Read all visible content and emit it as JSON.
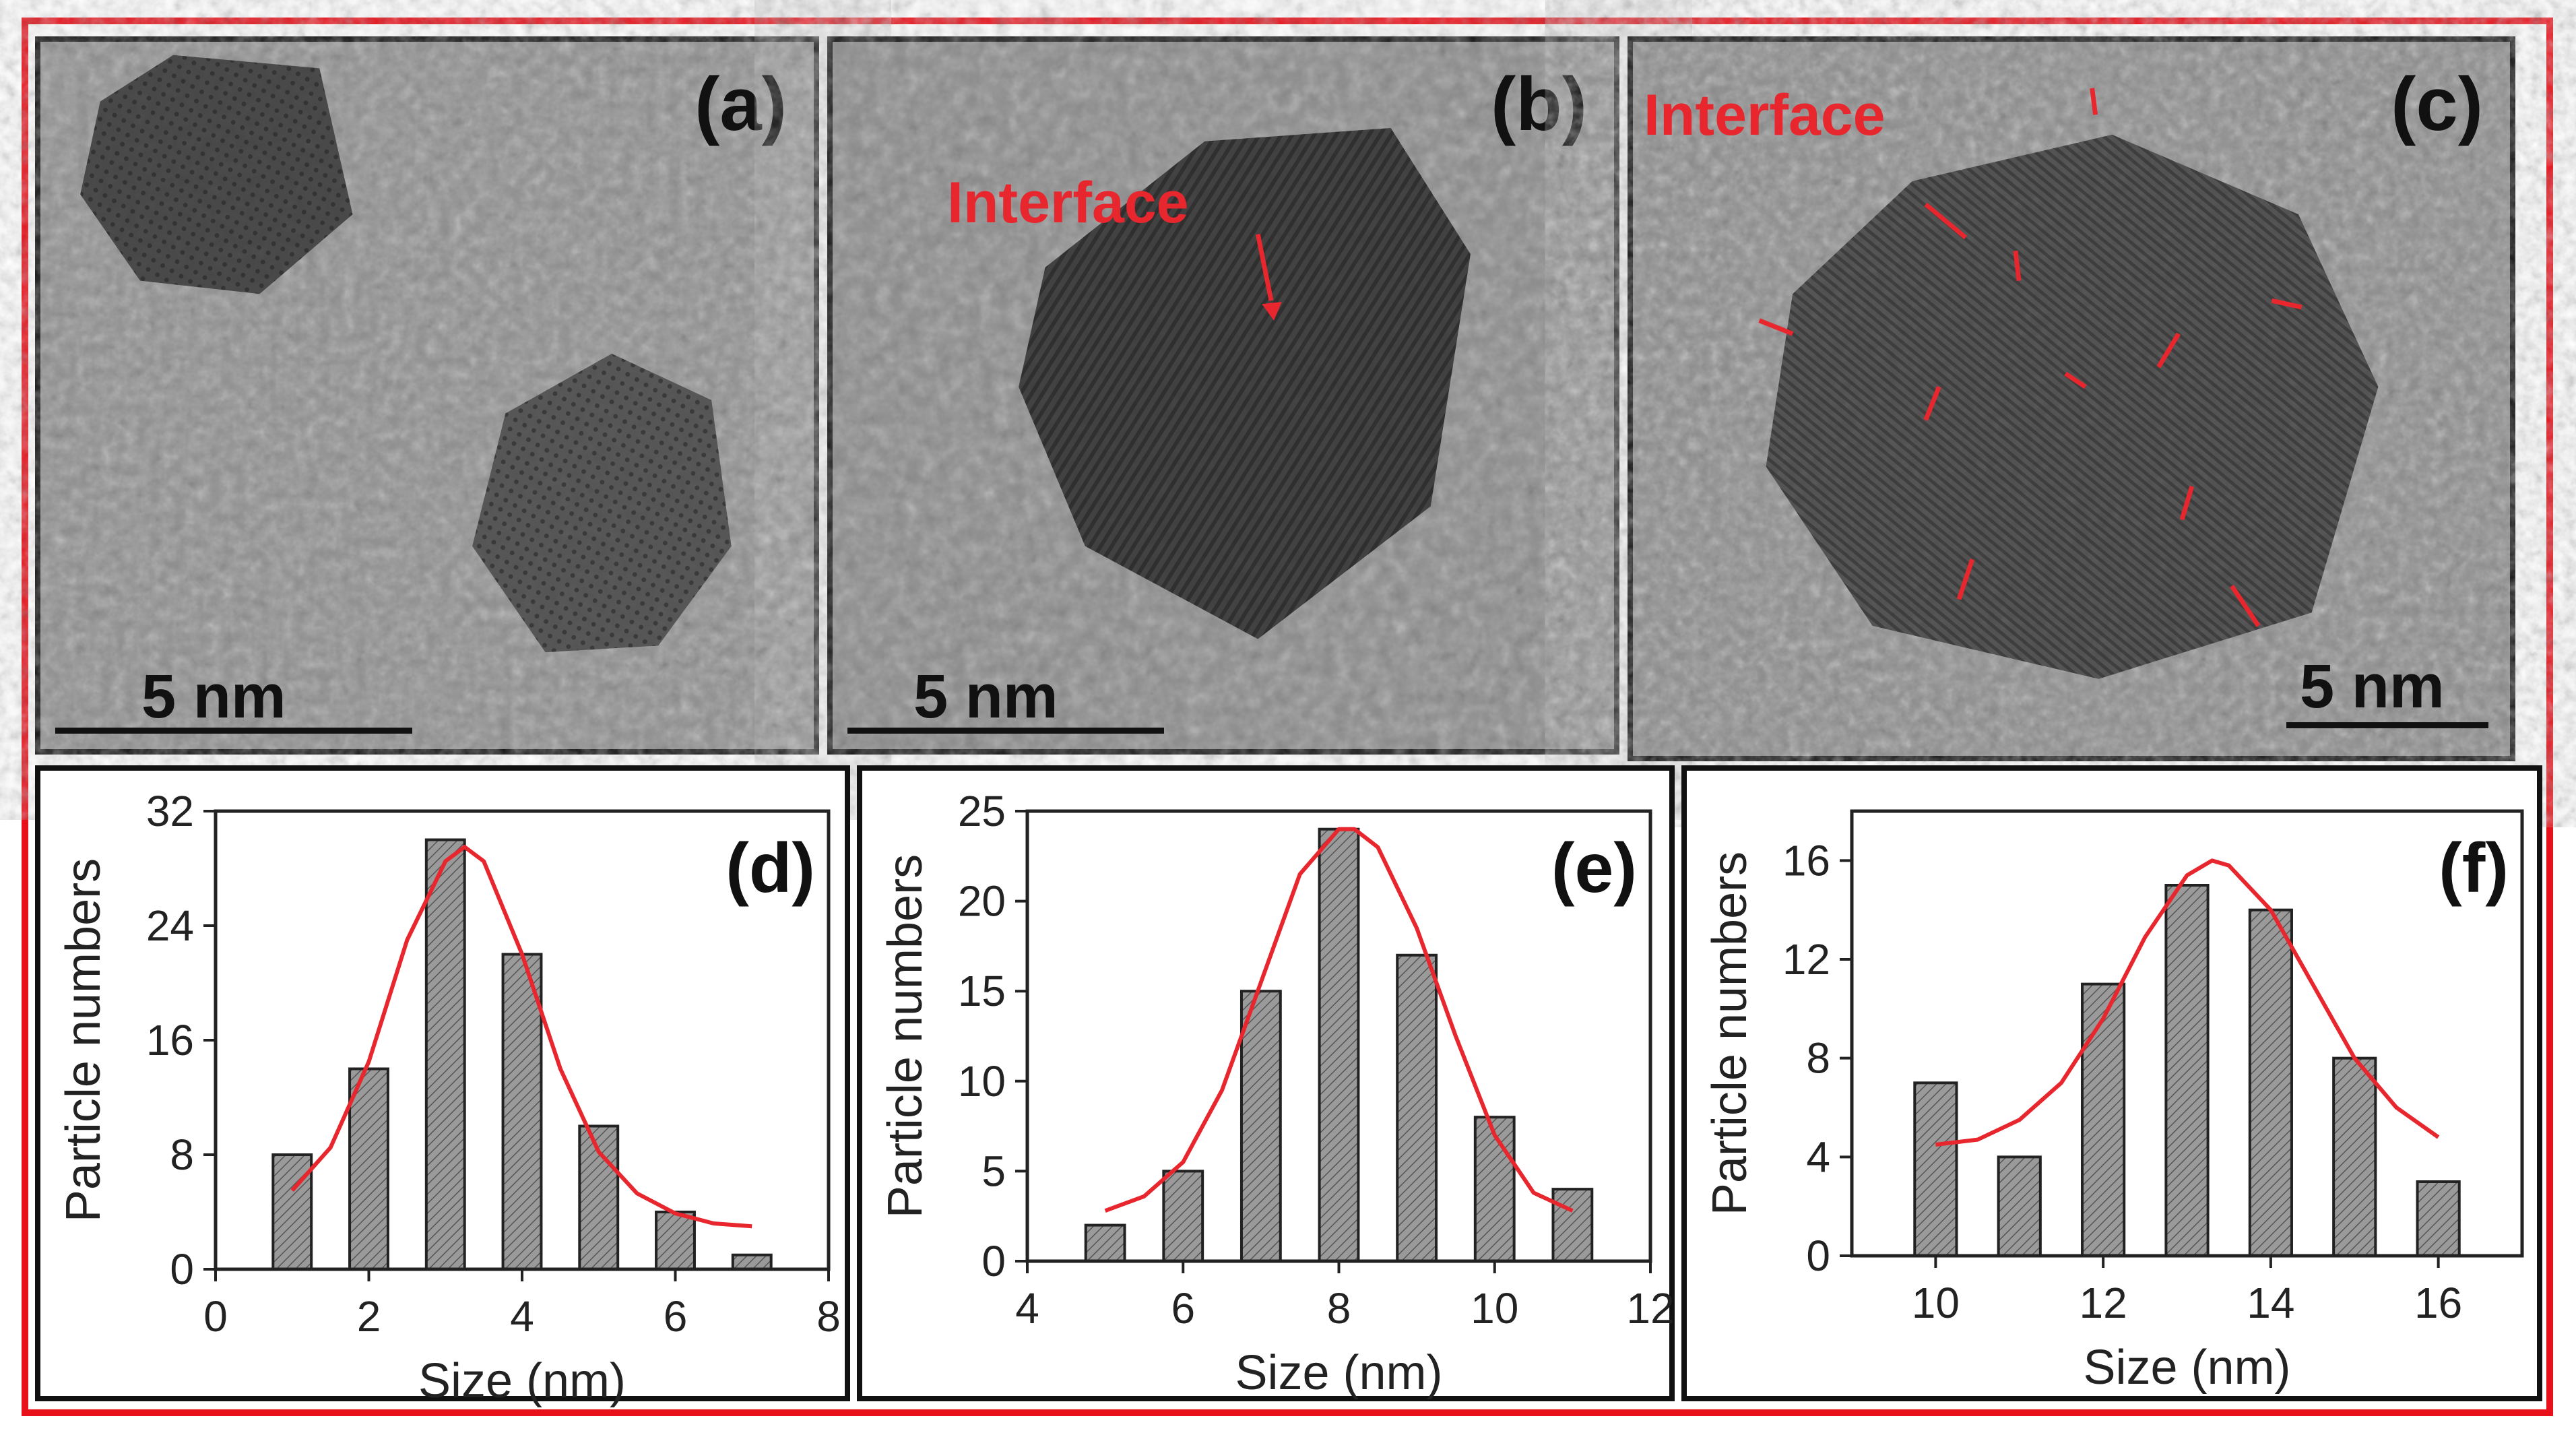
{
  "tem_panels": [
    {
      "label": "(a)",
      "scale_bar": "5 nm",
      "annotation": ""
    },
    {
      "label": "(b)",
      "scale_bar": "5 nm",
      "annotation": "Interface"
    },
    {
      "label": "(c)",
      "scale_bar": "5 nm",
      "annotation": "Interface"
    }
  ],
  "colors": {
    "frame": "#e8101a",
    "fit_curve": "#e8262e",
    "bar_fill": "#9a9a9a",
    "arrows": "#e8262e"
  },
  "chart_data": [
    {
      "type": "bar",
      "label": "(d)",
      "xlabel": "Size (nm)",
      "ylabel": "Particle numbers",
      "xlim": [
        0,
        8
      ],
      "ylim": [
        0,
        32
      ],
      "xticks": [
        0,
        2,
        4,
        6,
        8
      ],
      "yticks": [
        0,
        8,
        16,
        24,
        32
      ],
      "x": [
        1,
        2,
        3,
        4,
        5,
        6,
        7
      ],
      "values": [
        8,
        14,
        30,
        22,
        10,
        4,
        1
      ],
      "fit": {
        "type": "gaussian",
        "x": [
          1,
          1.5,
          2,
          2.5,
          3,
          3.25,
          3.5,
          4,
          4.5,
          5,
          5.5,
          6,
          6.5,
          7
        ],
        "y": [
          5.5,
          8.5,
          14.5,
          23,
          28.5,
          29.5,
          28.5,
          22,
          14,
          8.2,
          5.3,
          3.9,
          3.2,
          3.0
        ]
      }
    },
    {
      "type": "bar",
      "label": "(e)",
      "xlabel": "Size (nm)",
      "ylabel": "Particle numbers",
      "xlim": [
        4,
        12
      ],
      "ylim": [
        0,
        25
      ],
      "xticks": [
        4,
        6,
        8,
        10,
        12
      ],
      "yticks": [
        0,
        5,
        10,
        15,
        20,
        25
      ],
      "x": [
        5,
        6,
        7,
        8,
        9,
        10,
        11
      ],
      "values": [
        2,
        5,
        15,
        24,
        17,
        8,
        4
      ],
      "fit": {
        "type": "gaussian",
        "x": [
          5,
          5.5,
          6,
          6.5,
          7,
          7.5,
          8,
          8.2,
          8.5,
          9,
          9.5,
          10,
          10.5,
          11
        ],
        "y": [
          2.8,
          3.6,
          5.5,
          9.5,
          15.5,
          21.5,
          24,
          24,
          23,
          18.5,
          12.5,
          7.0,
          3.8,
          2.8
        ]
      }
    },
    {
      "type": "bar",
      "label": "(f)",
      "xlabel": "Size (nm)",
      "ylabel": "Particle numbers",
      "xlim": [
        9,
        17
      ],
      "ylim": [
        0,
        18
      ],
      "xticks": [
        10,
        12,
        14,
        16
      ],
      "yticks": [
        0,
        4,
        8,
        12,
        16
      ],
      "x": [
        10,
        11,
        12,
        13,
        14,
        15,
        16
      ],
      "values": [
        7,
        4,
        11,
        15,
        14,
        8,
        3
      ],
      "fit": {
        "type": "gaussian",
        "x": [
          10,
          10.5,
          11,
          11.5,
          12,
          12.5,
          13,
          13.3,
          13.5,
          14,
          14.5,
          15,
          15.5,
          16
        ],
        "y": [
          4.5,
          4.7,
          5.5,
          7.0,
          9.6,
          12.9,
          15.4,
          16.0,
          15.8,
          14.0,
          11.0,
          8.0,
          6.0,
          4.8
        ]
      }
    }
  ]
}
